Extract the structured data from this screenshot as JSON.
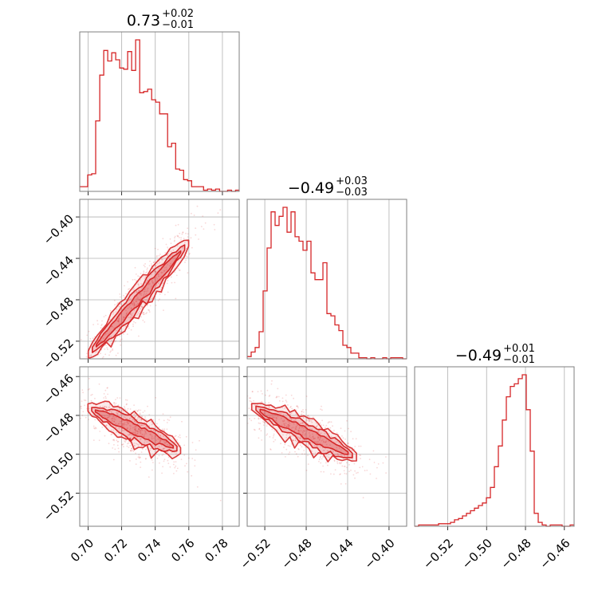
{
  "chart_data": {
    "type": "corner",
    "color": "#d62728",
    "parameters": [
      {
        "title": {
          "median": "0.73",
          "plus": "+0.02",
          "minus": "−0.01"
        },
        "range": [
          0.695,
          0.79
        ],
        "ticks": [
          0.7,
          0.72,
          0.74,
          0.76,
          0.78
        ],
        "tick_labels": [
          "0.70",
          "0.72",
          "0.74",
          "0.76",
          "0.78"
        ],
        "histogram": {
          "bin_start": 0.695,
          "bin_width": 0.00238,
          "counts": [
            4,
            4,
            14,
            15,
            60,
            99,
            120,
            111,
            118,
            112,
            105,
            104,
            119,
            103,
            129,
            84,
            85,
            87,
            78,
            76,
            66,
            66,
            38,
            41,
            19,
            18,
            10,
            9,
            4,
            4,
            4,
            1,
            2,
            1,
            2,
            0,
            0,
            1,
            0,
            1
          ]
        }
      },
      {
        "title": {
          "median": "−0.49",
          "plus": "+0.03",
          "minus": "−0.03"
        },
        "range": [
          -0.537,
          -0.383
        ],
        "ticks": [
          -0.52,
          -0.48,
          -0.44,
          -0.4
        ],
        "tick_labels": [
          "−0.52",
          "−0.48",
          "−0.44",
          "−0.40"
        ],
        "histogram": {
          "bin_start": -0.537,
          "bin_width": 0.00385,
          "counts": [
            2,
            6,
            10,
            24,
            60,
            98,
            130,
            118,
            126,
            134,
            112,
            130,
            108,
            104,
            96,
            104,
            76,
            70,
            70,
            85,
            40,
            38,
            30,
            25,
            12,
            10,
            5,
            5,
            1,
            1,
            0,
            1,
            0,
            0,
            1,
            0,
            1,
            1,
            1,
            0
          ]
        }
      },
      {
        "title": {
          "median": "−0.49",
          "plus": "+0.01",
          "minus": "−0.01"
        },
        "range": [
          -0.537,
          -0.455
        ],
        "ticks": [
          -0.52,
          -0.5,
          -0.48,
          -0.46
        ],
        "tick_labels": [
          "−0.52",
          "−0.50",
          "−0.48",
          "−0.46"
        ],
        "histogram": {
          "bin_start": -0.537,
          "bin_width": 0.00205,
          "counts": [
            0,
            1,
            1,
            1,
            1,
            1,
            2,
            2,
            2,
            3,
            5,
            6,
            8,
            10,
            12,
            14,
            16,
            18,
            22,
            30,
            46,
            62,
            82,
            100,
            108,
            110,
            114,
            117,
            90,
            58,
            10,
            3,
            1,
            0,
            1,
            1,
            1,
            0,
            0,
            1
          ]
        }
      }
    ],
    "pairs": [
      {
        "x_param": 0,
        "y_param": 1,
        "correlation": "positive",
        "line": {
          "x0": 0.7,
          "y0": -0.533,
          "x1": 0.76,
          "y1": -0.425
        },
        "sigma_x": 0.013,
        "sigma_perp": 0.006
      },
      {
        "x_param": 0,
        "y_param": 2,
        "correlation": "negative",
        "line": {
          "x0": 0.7,
          "y0": -0.476,
          "x1": 0.755,
          "y1": -0.498
        },
        "sigma_x": 0.012,
        "sigma_perp": 0.003
      },
      {
        "x_param": 1,
        "y_param": 2,
        "correlation": "negative",
        "line": {
          "x0": -0.534,
          "y0": -0.475,
          "x1": -0.43,
          "y1": -0.502
        },
        "sigma_x": 0.022,
        "sigma_perp": 0.003
      }
    ]
  }
}
